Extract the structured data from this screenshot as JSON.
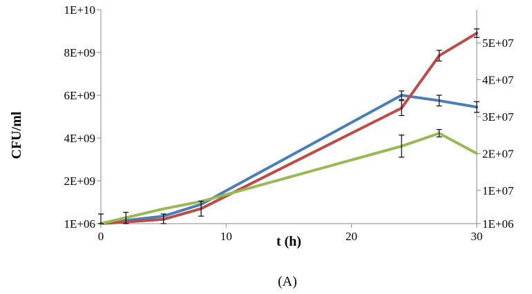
{
  "chart_data": {
    "type": "line",
    "xlabel": "t (h)",
    "ylabel": "CFU/ml",
    "panel_label": "(A)",
    "x_ticks": [
      "0",
      "10",
      "20",
      "30"
    ],
    "xlim": [
      0,
      30
    ],
    "y_left": {
      "ticks": [
        {
          "value": 1000000,
          "label": "1E+06"
        },
        {
          "value": 2000000000,
          "label": "2E+09"
        },
        {
          "value": 4000000000,
          "label": "4E+09"
        },
        {
          "value": 6000000000,
          "label": "6E+09"
        },
        {
          "value": 8000000000,
          "label": "8E+09"
        },
        {
          "value": 10000000000,
          "label": "1E+10"
        }
      ],
      "lim": [
        1000000,
        10000000000
      ]
    },
    "y_right": {
      "ticks": [
        {
          "value": 1000000,
          "label": "1E+06"
        },
        {
          "value": 10000000,
          "label": "1E+07"
        },
        {
          "value": 20000000,
          "label": "2E+07"
        },
        {
          "value": 30000000,
          "label": "3E+07"
        },
        {
          "value": 40000000,
          "label": "4E+07"
        },
        {
          "value": 50000000,
          "label": "5E+07"
        }
      ],
      "lim": [
        1000000,
        59000000
      ]
    },
    "grid": false,
    "series": [
      {
        "color": "#4a7ebb",
        "axis": "left",
        "x": [
          0,
          2,
          5,
          8,
          24,
          27,
          30
        ],
        "y": [
          1000000,
          150000000,
          350000000,
          900000000,
          6000000000,
          5750000000,
          5450000000
        ],
        "err": [
          0,
          0,
          0,
          0,
          200000000,
          250000000,
          250000000
        ]
      },
      {
        "color": "#be4b48",
        "axis": "left",
        "x": [
          0,
          2,
          5,
          8,
          24,
          27,
          30
        ],
        "y": [
          1000000,
          80000000,
          200000000,
          700000000,
          5400000000,
          7850000000,
          8900000000
        ],
        "err": [
          450000000,
          450000000,
          250000000,
          350000000,
          350000000,
          250000000,
          200000000
        ]
      },
      {
        "color": "#98b954",
        "axis": "right",
        "x": [
          0,
          5,
          8,
          24,
          27,
          30
        ],
        "y": [
          1000000,
          5000000,
          7000000,
          22000000,
          25500000,
          20000000
        ],
        "err": [
          0,
          0,
          0,
          3000000,
          1000000,
          0
        ]
      }
    ]
  }
}
